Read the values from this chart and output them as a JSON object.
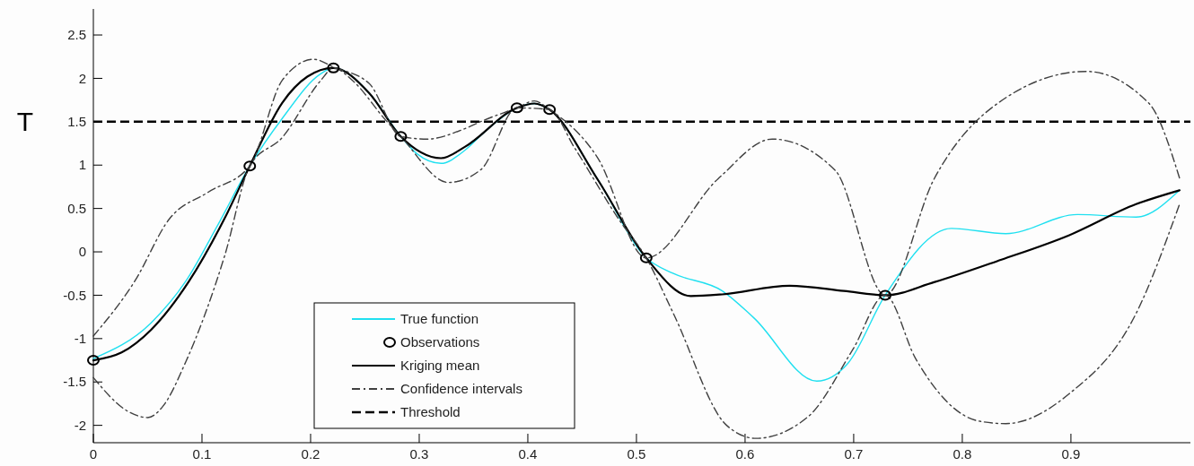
{
  "chart_data": {
    "type": "line",
    "ylabel": "T",
    "xlim": [
      0,
      1.01
    ],
    "ylim": [
      -2.2,
      2.8
    ],
    "xticks": [
      0,
      0.1,
      0.2,
      0.3,
      0.4,
      0.5,
      0.6,
      0.7,
      0.8,
      0.9
    ],
    "yticks": [
      -2,
      -1.5,
      -1,
      -0.5,
      0,
      0.5,
      1,
      1.5,
      2,
      2.5
    ],
    "grid": false,
    "legend": "bottom",
    "series": [
      {
        "name": "True function",
        "color": "#20e0f0",
        "line_style": "solid",
        "x": [
          0,
          0.053,
          0.085,
          0.115,
          0.144,
          0.174,
          0.209,
          0.221,
          0.254,
          0.283,
          0.298,
          0.32,
          0.342,
          0.36,
          0.39,
          0.406,
          0.42,
          0.464,
          0.509,
          0.534,
          0.579,
          0.608,
          0.666,
          0.695,
          0.729,
          0.79,
          0.84,
          0.906,
          0.96,
          1.0
        ],
        "values": [
          -1.23,
          -0.82,
          -0.34,
          0.32,
          0.99,
          1.54,
          2.05,
          2.12,
          1.83,
          1.33,
          1.13,
          1.02,
          1.17,
          1.38,
          1.66,
          1.71,
          1.64,
          0.84,
          -0.07,
          -0.25,
          -0.45,
          -0.76,
          -1.49,
          -1.28,
          -0.5,
          0.27,
          0.21,
          0.43,
          0.4,
          0.71
        ]
      },
      {
        "name": "Observations",
        "type": "scatter",
        "color": "#000000",
        "marker": "circle",
        "x": [
          0,
          0.144,
          0.221,
          0.283,
          0.39,
          0.42,
          0.509,
          0.729
        ],
        "values": [
          -1.25,
          0.99,
          2.12,
          1.33,
          1.66,
          1.64,
          -0.07,
          -0.5
        ]
      },
      {
        "name": "Kriging mean",
        "color": "#000000",
        "line_style": "solid",
        "x": [
          0,
          0.026,
          0.053,
          0.088,
          0.121,
          0.144,
          0.174,
          0.197,
          0.221,
          0.254,
          0.283,
          0.32,
          0.342,
          0.39,
          0.406,
          0.42,
          0.464,
          0.509,
          0.55,
          0.579,
          0.641,
          0.691,
          0.729,
          0.774,
          0.836,
          0.898,
          0.96,
          1.0
        ],
        "values": [
          -1.25,
          -1.16,
          -0.9,
          -0.34,
          0.39,
          0.99,
          1.72,
          2.02,
          2.12,
          1.83,
          1.33,
          1.08,
          1.21,
          1.66,
          1.71,
          1.64,
          0.84,
          -0.07,
          -0.51,
          -0.49,
          -0.39,
          -0.45,
          -0.5,
          -0.35,
          -0.09,
          0.19,
          0.55,
          0.71
        ]
      },
      {
        "name": "Confidence intervals",
        "color": "#404040",
        "line_style": "dashed",
        "x": [
          0,
          0.038,
          0.07,
          0.106,
          0.144,
          0.174,
          0.203,
          0.221,
          0.254,
          0.283,
          0.307,
          0.342,
          0.36,
          0.39,
          0.406,
          0.42,
          0.464,
          0.509,
          0.575,
          0.625,
          0.683,
          0.729,
          0.774,
          0.827,
          0.914,
          0.972,
          1.0
        ],
        "values": [
          -0.97,
          -0.34,
          0.38,
          0.69,
          0.99,
          1.98,
          2.22,
          2.13,
          1.94,
          1.33,
          1.3,
          1.42,
          1.52,
          1.66,
          1.74,
          1.64,
          1.09,
          -0.07,
          0.84,
          1.3,
          0.94,
          -0.5,
          0.84,
          1.66,
          2.08,
          1.71,
          0.85
        ]
      },
      {
        "color": "#404040",
        "line_style": "dashed",
        "x": [
          0,
          0.032,
          0.05,
          0.064,
          0.085,
          0.121,
          0.144,
          0.174,
          0.209,
          0.221,
          0.239,
          0.269,
          0.283,
          0.327,
          0.357,
          0.39,
          0.42,
          0.443,
          0.484,
          0.509,
          0.534,
          0.583,
          0.61,
          0.658,
          0.699,
          0.729,
          0.757,
          0.815,
          0.84,
          0.898,
          0.96,
          1.0
        ],
        "values": [
          -1.45,
          -1.84,
          -1.91,
          -1.78,
          -1.27,
          -0.04,
          0.99,
          1.32,
          1.97,
          2.12,
          1.97,
          1.52,
          1.33,
          0.8,
          0.95,
          1.66,
          1.64,
          1.2,
          0.37,
          -0.07,
          -0.71,
          -2.0,
          -2.15,
          -1.9,
          -1.13,
          -0.5,
          -1.23,
          -1.95,
          -1.98,
          -1.64,
          -0.71,
          0.55
        ]
      }
    ],
    "ref_lines": [
      {
        "axis": "y",
        "value": 1.5,
        "label": "Threshold",
        "color": "#000000",
        "line_style": "dashed"
      }
    ]
  }
}
